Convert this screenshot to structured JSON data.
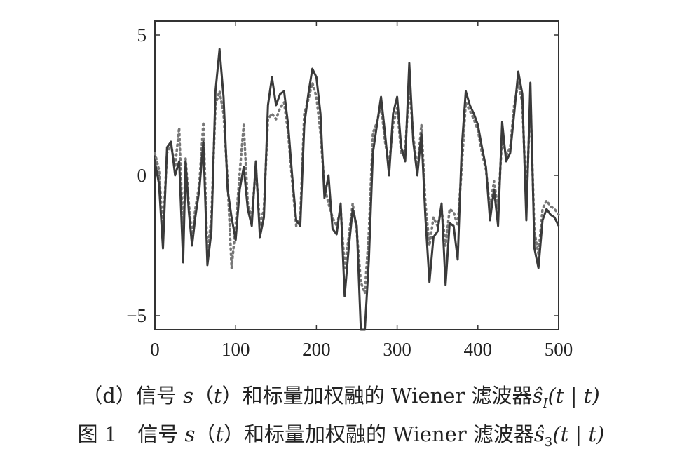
{
  "chart_data": {
    "type": "line",
    "xlim": [
      0,
      500
    ],
    "ylim": [
      -5.5,
      5.5
    ],
    "x_ticks": [
      0,
      100,
      200,
      300,
      400,
      500
    ],
    "y_ticks": [
      5,
      0,
      -5
    ],
    "x_tick_labels": [
      "0",
      "100",
      "200",
      "300",
      "400",
      "500"
    ],
    "y_tick_labels": [
      "5",
      "0",
      "−5"
    ],
    "grid": false,
    "series": [
      {
        "style": "solid",
        "color": "#3a3a3a",
        "x": [
          0,
          5,
          10,
          15,
          20,
          25,
          30,
          35,
          38,
          42,
          46,
          50,
          55,
          60,
          65,
          70,
          75,
          80,
          85,
          90,
          95,
          100,
          105,
          110,
          115,
          120,
          125,
          130,
          135,
          140,
          145,
          150,
          155,
          160,
          165,
          170,
          175,
          180,
          185,
          190,
          195,
          200,
          205,
          210,
          215,
          220,
          225,
          230,
          235,
          240,
          245,
          250,
          255,
          260,
          265,
          270,
          275,
          280,
          285,
          290,
          295,
          300,
          305,
          310,
          315,
          320,
          325,
          330,
          335,
          340,
          345,
          350,
          355,
          360,
          365,
          370,
          375,
          380,
          385,
          390,
          395,
          400,
          405,
          410,
          415,
          420,
          425,
          430,
          435,
          440,
          445,
          450,
          455,
          460,
          465,
          470,
          475,
          480,
          485,
          490,
          495,
          500
        ],
        "y": [
          0.5,
          -0.3,
          -2.6,
          1.0,
          1.2,
          0.0,
          0.5,
          -3.1,
          0.5,
          -1.3,
          -2.5,
          -1.5,
          -0.5,
          1.2,
          -3.2,
          -2.0,
          3.0,
          4.5,
          2.8,
          -0.5,
          -1.5,
          -2.3,
          -0.5,
          0.3,
          -1.2,
          -1.8,
          0.5,
          -2.2,
          -1.5,
          2.5,
          3.5,
          2.5,
          2.9,
          3.0,
          1.8,
          0.0,
          -1.6,
          -1.8,
          1.8,
          2.9,
          3.8,
          3.5,
          2.2,
          -0.8,
          0.0,
          -1.9,
          -2.1,
          -1.0,
          -4.3,
          -2.6,
          -1.2,
          -1.8,
          -5.5,
          -5.5,
          -3.0,
          0.8,
          1.8,
          2.8,
          1.5,
          0.0,
          2.2,
          2.8,
          1.0,
          0.5,
          4.0,
          1.2,
          0.0,
          1.5,
          -1.5,
          -3.8,
          -2.2,
          -2.0,
          -1.0,
          -3.9,
          -1.7,
          -1.8,
          -3.0,
          1.0,
          3.0,
          2.5,
          2.2,
          1.8,
          1.0,
          0.3,
          -1.6,
          -0.5,
          -1.8,
          1.9,
          0.5,
          0.8,
          2.2,
          3.7,
          2.9,
          -1.6,
          3.3,
          -2.6,
          -3.3,
          -1.6,
          -1.2,
          -1.4,
          -1.5,
          -1.8
        ]
      },
      {
        "style": "dotted",
        "color": "#777777",
        "x": [
          0,
          5,
          10,
          15,
          20,
          25,
          30,
          35,
          38,
          42,
          46,
          50,
          55,
          60,
          65,
          70,
          75,
          80,
          85,
          90,
          95,
          100,
          105,
          110,
          115,
          120,
          125,
          130,
          135,
          140,
          145,
          150,
          155,
          160,
          165,
          170,
          175,
          180,
          185,
          190,
          195,
          200,
          205,
          210,
          215,
          220,
          225,
          230,
          235,
          240,
          245,
          250,
          255,
          260,
          265,
          270,
          275,
          280,
          285,
          290,
          295,
          300,
          305,
          310,
          315,
          320,
          325,
          330,
          335,
          340,
          345,
          350,
          355,
          360,
          365,
          370,
          375,
          380,
          385,
          390,
          395,
          400,
          405,
          410,
          415,
          420,
          425,
          430,
          435,
          440,
          445,
          450,
          455,
          460,
          465,
          470,
          475,
          480,
          485,
          490,
          495,
          500
        ],
        "y": [
          0.8,
          0.2,
          -2.0,
          0.8,
          1.1,
          0.3,
          1.7,
          -2.2,
          0.6,
          -1.0,
          -2.2,
          -1.2,
          -0.3,
          1.9,
          -2.8,
          -1.5,
          2.5,
          3.0,
          2.2,
          -0.2,
          -3.3,
          -1.8,
          0.1,
          1.8,
          -1.0,
          -1.5,
          0.3,
          -1.8,
          -1.2,
          2.0,
          2.2,
          2.0,
          2.4,
          2.6,
          1.5,
          -0.2,
          -1.8,
          -1.5,
          2.2,
          2.7,
          3.3,
          2.8,
          1.5,
          -0.4,
          -1.0,
          -1.5,
          -1.8,
          -1.2,
          -3.3,
          -2.2,
          -1.0,
          -2.0,
          -3.8,
          -4.2,
          -2.0,
          1.5,
          1.9,
          2.5,
          1.2,
          0.4,
          1.8,
          2.4,
          0.8,
          0.9,
          3.2,
          1.4,
          0.2,
          1.8,
          -1.0,
          -2.5,
          -1.5,
          -1.8,
          -1.2,
          -2.5,
          -1.2,
          -1.3,
          -1.8,
          0.3,
          2.6,
          2.3,
          2.0,
          1.6,
          0.8,
          0.2,
          -1.2,
          -0.2,
          -1.2,
          1.4,
          0.7,
          1.0,
          2.5,
          3.3,
          2.6,
          -1.0,
          2.7,
          -2.0,
          -2.8,
          -1.2,
          -0.9,
          -1.1,
          -1.2,
          -1.4
        ]
      }
    ]
  },
  "caption": {
    "line1_prefix": "（d）信号",
    "line1_s": "s",
    "line1_mid": "（",
    "line1_t": "t",
    "line1_rest": "）和标量加权融的 Wiener 滤波器",
    "line1_estimator": "ŝ",
    "line1_sub": "I",
    "line1_end": "(t | t)",
    "line2_prefix": "图 1　信号",
    "line2_s": "s",
    "line2_mid": "（",
    "line2_t": "t",
    "line2_rest": "）和标量加权融的 Wiener 滤波器",
    "line2_estimator": "ŝ",
    "line2_sub": "3",
    "line2_end": "(t | t)"
  }
}
